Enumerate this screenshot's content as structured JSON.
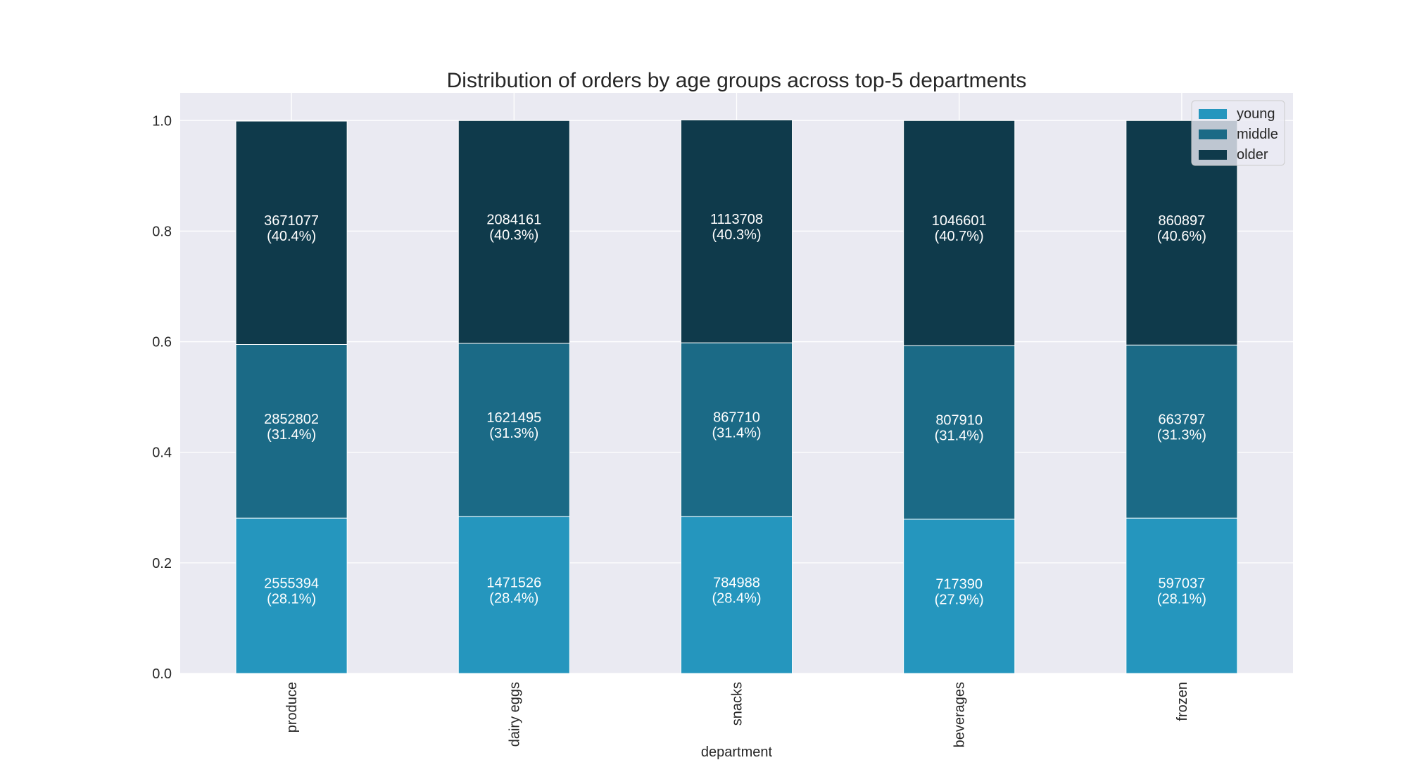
{
  "chart_data": {
    "type": "bar",
    "stacked": true,
    "normalized": true,
    "title": "Distribution of orders by age groups across top-5 departments",
    "xlabel": "department",
    "ylabel": "",
    "ylim": [
      0,
      1.05
    ],
    "yticks": [
      "0.0",
      "0.2",
      "0.4",
      "0.6",
      "0.8",
      "1.0"
    ],
    "grid": true,
    "legend_position": "top-right",
    "categories": [
      "produce",
      "dairy eggs",
      "snacks",
      "beverages",
      "frozen"
    ],
    "series": [
      {
        "name": "young",
        "color": "#2596be",
        "counts": [
          2555394,
          1471526,
          784988,
          717390,
          597037
        ],
        "values": [
          0.281,
          0.284,
          0.284,
          0.279,
          0.281
        ],
        "labels": [
          "2555394\n(28.1%)",
          "1471526\n(28.4%)",
          "784988\n(28.4%)",
          "717390\n(27.9%)",
          "597037\n(28.1%)"
        ]
      },
      {
        "name": "middle",
        "color": "#1b6a86",
        "counts": [
          2852802,
          1621495,
          867710,
          807910,
          663797
        ],
        "values": [
          0.314,
          0.313,
          0.314,
          0.314,
          0.313
        ],
        "labels": [
          "2852802\n(31.4%)",
          "1621495\n(31.3%)",
          "867710\n(31.4%)",
          "807910\n(31.4%)",
          "663797\n(31.3%)"
        ]
      },
      {
        "name": "older",
        "color": "#0f3a4b",
        "counts": [
          3671077,
          2084161,
          1113708,
          1046601,
          860897
        ],
        "values": [
          0.404,
          0.403,
          0.403,
          0.407,
          0.406
        ],
        "labels": [
          "3671077\n(40.4%)",
          "2084161\n(40.3%)",
          "1113708\n(40.3%)",
          "1046601\n(40.7%)",
          "860897\n(40.6%)"
        ]
      }
    ],
    "colors": {
      "plot_background": "#eaeaf2",
      "grid": "#ffffff",
      "text": "#262626",
      "bar_label": "#ffffff"
    }
  }
}
